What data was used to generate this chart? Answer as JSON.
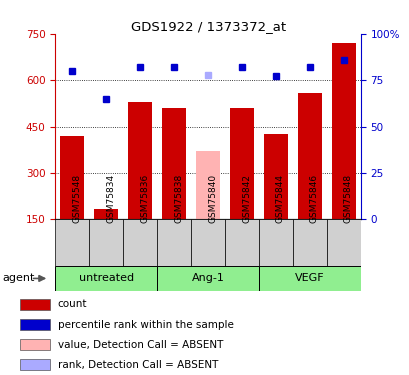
{
  "title": "GDS1922 / 1373372_at",
  "samples": [
    "GSM75548",
    "GSM75834",
    "GSM75836",
    "GSM75838",
    "GSM75840",
    "GSM75842",
    "GSM75844",
    "GSM75846",
    "GSM75848"
  ],
  "bar_values": [
    420,
    185,
    530,
    510,
    370,
    510,
    425,
    560,
    720
  ],
  "bar_colors": [
    "#cc0000",
    "#cc0000",
    "#cc0000",
    "#cc0000",
    "#ffb3b3",
    "#cc0000",
    "#cc0000",
    "#cc0000",
    "#cc0000"
  ],
  "dot_values": [
    80,
    65,
    82,
    82,
    78,
    82,
    77,
    82,
    86
  ],
  "dot_colors": [
    "#0000cc",
    "#0000cc",
    "#0000cc",
    "#0000cc",
    "#aaaaff",
    "#0000cc",
    "#0000cc",
    "#0000cc",
    "#0000cc"
  ],
  "ylim_left": [
    150,
    750
  ],
  "ylim_right": [
    0,
    100
  ],
  "yticks_left": [
    150,
    300,
    450,
    600,
    750
  ],
  "yticks_right": [
    0,
    25,
    50,
    75,
    100
  ],
  "ytick_dotted": [
    300,
    450,
    600
  ],
  "left_axis_color": "#cc0000",
  "right_axis_color": "#0000cc",
  "groups": [
    {
      "label": "untreated",
      "start": 0,
      "end": 2
    },
    {
      "label": "Ang-1",
      "start": 3,
      "end": 5
    },
    {
      "label": "VEGF",
      "start": 6,
      "end": 8
    }
  ],
  "group_color": "#90ee90",
  "sample_box_color": "#d0d0d0",
  "legend_items": [
    {
      "label": "count",
      "color": "#cc0000"
    },
    {
      "label": "percentile rank within the sample",
      "color": "#0000cc"
    },
    {
      "label": "value, Detection Call = ABSENT",
      "color": "#ffb3b3"
    },
    {
      "label": "rank, Detection Call = ABSENT",
      "color": "#aaaaff"
    }
  ],
  "agent_label": "agent"
}
